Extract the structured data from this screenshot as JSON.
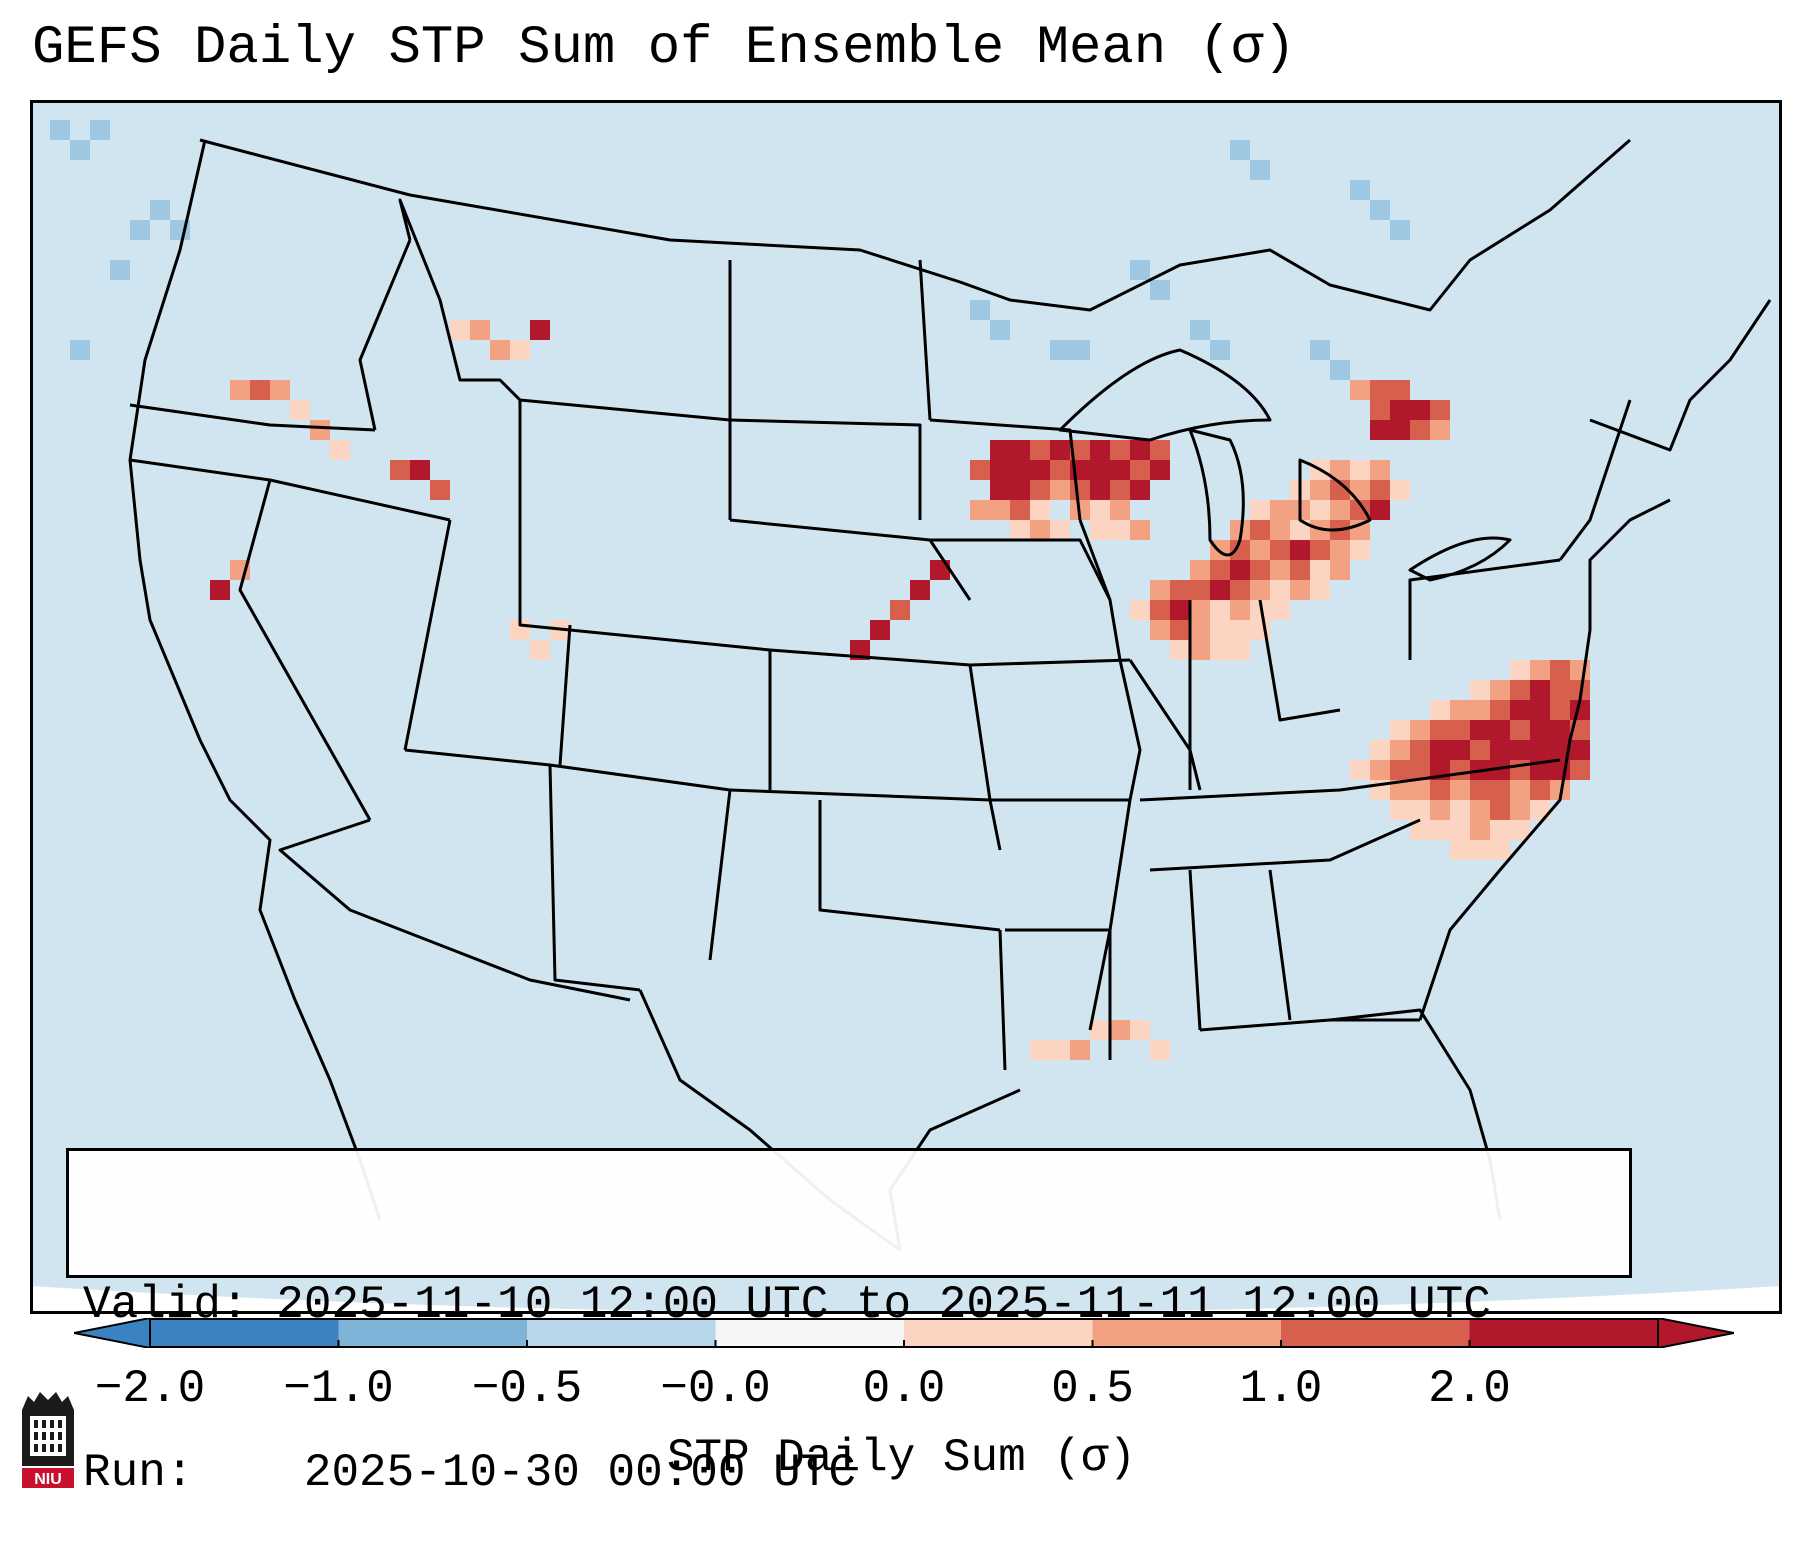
{
  "title": "GEFS Daily STP Sum of Ensemble Mean (σ)",
  "info": {
    "valid_label": "Valid:",
    "valid_value": "2025-11-10 12:00 UTC to 2025-11-11 12:00 UTC",
    "run_label": "Run:",
    "run_value": "2025-10-30 00:00 UTC"
  },
  "colorbar": {
    "label": "STP Daily Sum (σ)",
    "ticks": [
      "−2.0",
      "−1.0",
      "−0.5",
      "−0.0",
      "0.0",
      "0.5",
      "1.0",
      "2.0"
    ],
    "bin_colors": [
      "#3a83c0",
      "#7fb4d9",
      "#b7d6ea",
      "#f4f6f8",
      "#fbd5c2",
      "#f2a283",
      "#d6604d",
      "#b2182b"
    ],
    "extend": "both"
  },
  "map": {
    "background_color": "#d1e5f0",
    "outside_color": "#ffffff",
    "projection": "Lambert Conformal (CONUS)"
  },
  "logo": {
    "text": "NIU",
    "name": "Northern Illinois University"
  }
}
